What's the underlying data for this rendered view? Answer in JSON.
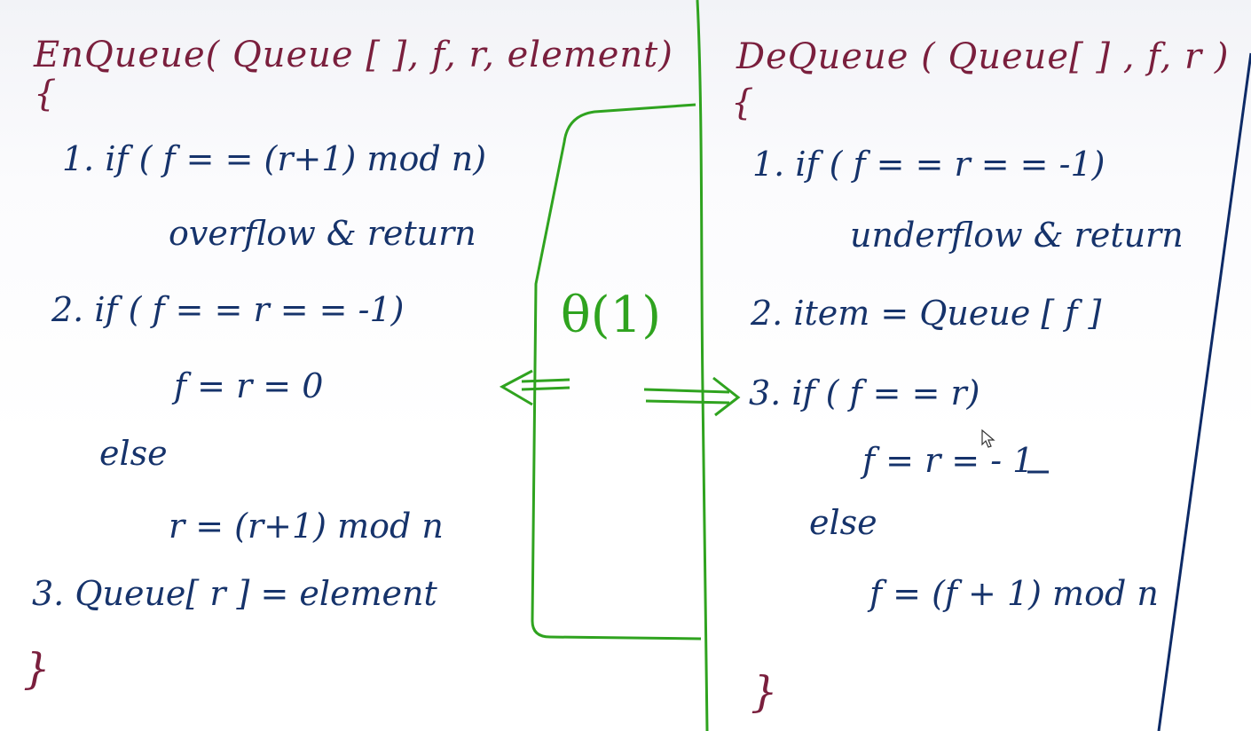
{
  "enqueue": {
    "header": "EnQueue( Queue [ ], f, r, element)",
    "open_brace": "{",
    "steps": [
      "1.  if ( f = = (r+1) mod n)",
      "overflow & return",
      "2.  if ( f = = r = = -1)",
      "f = r = 0",
      "else",
      "r = (r+1) mod n",
      "3.  Queue[ r ] = element"
    ],
    "close_brace": "}"
  },
  "dequeue": {
    "header": "DeQueue ( Queue[ ] , f, r )",
    "open_brace": "{",
    "steps": [
      "1.  if ( f = = r = = -1)",
      "underflow & return",
      "2.  item = Queue [ f ]",
      "3.  if ( f = = r)",
      "f = r = - 1",
      "else",
      "f = (f + 1) mod n"
    ],
    "close_brace": "}"
  },
  "complexity": {
    "label": "θ(1)"
  },
  "colors": {
    "header": "#7a1f3d",
    "body": "#16336b",
    "annotation": "#2fa31f",
    "divider_right": "#0d2a66"
  },
  "icons": {
    "cursor": "mouse-pointer-icon",
    "left_arrow": "double-arrow-left-icon",
    "right_arrow": "double-arrow-right-icon"
  }
}
